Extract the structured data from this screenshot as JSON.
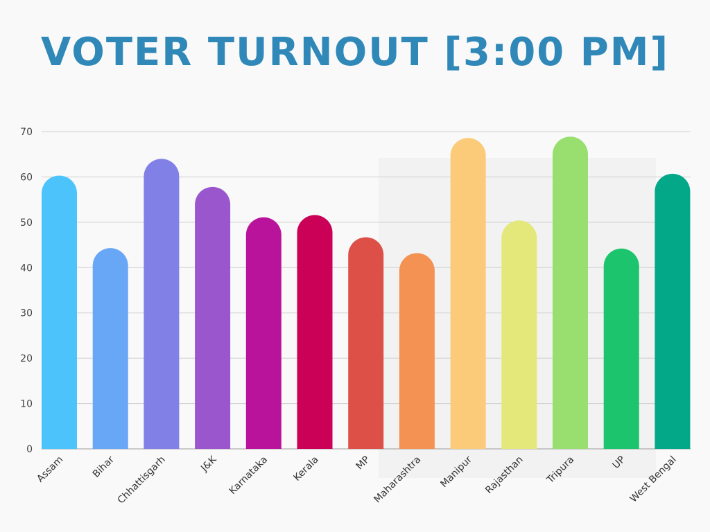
{
  "chart_data": {
    "type": "bar",
    "title": "VOTER TURNOUT [3:00 PM]",
    "xlabel": "",
    "ylabel": "",
    "ylim": [
      0,
      70
    ],
    "yticks": [
      0,
      10,
      20,
      30,
      40,
      50,
      60,
      70
    ],
    "grid": true,
    "legend": "none",
    "categories": [
      "Assam",
      "Bihar",
      "Chhattisgarh",
      "J&K",
      "Karnataka",
      "Kerala",
      "MP",
      "Maharashtra",
      "Manipur",
      "Rajasthan",
      "Tripura",
      "UP",
      "West Bengal"
    ],
    "values": [
      60.3,
      44.3,
      64.0,
      57.8,
      51.1,
      51.6,
      46.7,
      43.2,
      68.6,
      50.4,
      68.9,
      44.2,
      60.7
    ],
    "colors": [
      "#4cc4fb",
      "#68a6f6",
      "#8080e6",
      "#9a57cd",
      "#b9139c",
      "#cb0157",
      "#dc5048",
      "#f49254",
      "#fbcb79",
      "#e4e87a",
      "#98df70",
      "#1cc46d",
      "#02a888"
    ]
  }
}
